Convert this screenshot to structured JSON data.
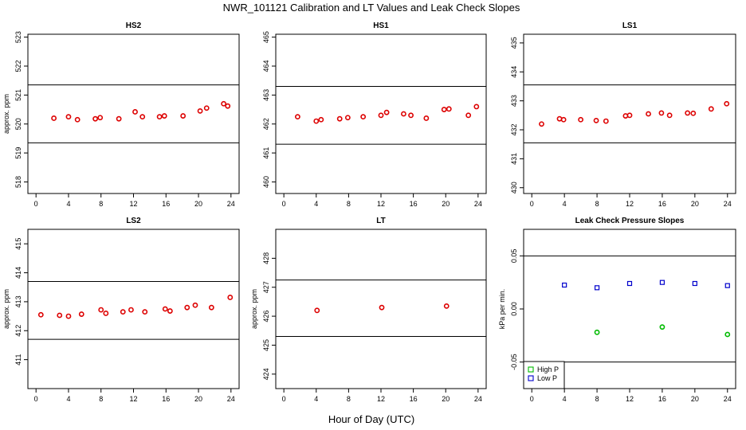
{
  "title": "NWR_101121  Calibration and LT Values and Leak Check Slopes",
  "xlabel": "Hour of Day (UTC)",
  "colors": {
    "red": "#dd0000",
    "green": "#00bb00",
    "blue": "#0000cc"
  },
  "chart_data": [
    {
      "type": "scatter",
      "title": "HS2",
      "ylabel": "approx. ppm",
      "xlim": [
        -1,
        25
      ],
      "xticks": [
        0,
        4,
        8,
        12,
        16,
        20,
        24
      ],
      "ylim": [
        517.6,
        523.1
      ],
      "yticks": [
        518,
        519,
        520,
        521,
        522,
        523
      ],
      "hlines": [
        519.35,
        521.35
      ],
      "series": [
        {
          "color": "red",
          "marker": "circle",
          "x": [
            2.2,
            4.0,
            5.1,
            7.3,
            7.9,
            10.2,
            12.2,
            13.1,
            15.2,
            15.8,
            18.1,
            20.2,
            21.0,
            23.1,
            23.6
          ],
          "y": [
            520.2,
            520.25,
            520.15,
            520.18,
            520.22,
            520.18,
            520.42,
            520.25,
            520.25,
            520.28,
            520.28,
            520.45,
            520.55,
            520.7,
            520.62
          ]
        }
      ]
    },
    {
      "type": "scatter",
      "title": "HS1",
      "ylabel": "",
      "xlim": [
        -1,
        25
      ],
      "xticks": [
        0,
        4,
        8,
        12,
        16,
        20,
        24
      ],
      "ylim": [
        459.6,
        465.1
      ],
      "yticks": [
        460,
        461,
        462,
        463,
        464,
        465
      ],
      "hlines": [
        461.3,
        463.3
      ],
      "series": [
        {
          "color": "red",
          "marker": "circle",
          "x": [
            1.7,
            4.0,
            4.6,
            6.9,
            7.9,
            9.8,
            12.0,
            12.7,
            14.8,
            15.7,
            17.6,
            19.8,
            20.4,
            22.8,
            23.8
          ],
          "y": [
            462.25,
            462.1,
            462.15,
            462.18,
            462.22,
            462.25,
            462.3,
            462.4,
            462.35,
            462.3,
            462.2,
            462.5,
            462.52,
            462.3,
            462.6
          ]
        }
      ]
    },
    {
      "type": "scatter",
      "title": "LS1",
      "ylabel": "",
      "xlim": [
        -1,
        25
      ],
      "xticks": [
        0,
        4,
        8,
        12,
        16,
        20,
        24
      ],
      "ylim": [
        429.8,
        435.3
      ],
      "yticks": [
        430,
        431,
        432,
        433,
        434,
        435
      ],
      "hlines": [
        431.55,
        433.55
      ],
      "series": [
        {
          "color": "red",
          "marker": "circle",
          "x": [
            1.2,
            3.4,
            3.9,
            6.0,
            7.9,
            9.1,
            11.5,
            12.0,
            14.3,
            15.9,
            16.9,
            19.1,
            19.8,
            22.0,
            23.9
          ],
          "y": [
            432.2,
            432.38,
            432.35,
            432.35,
            432.32,
            432.3,
            432.48,
            432.5,
            432.55,
            432.58,
            432.5,
            432.58,
            432.57,
            432.72,
            432.9
          ]
        }
      ]
    },
    {
      "type": "scatter",
      "title": "LS2",
      "ylabel": "approx. ppm",
      "xlim": [
        -1,
        25
      ],
      "xticks": [
        0,
        4,
        8,
        12,
        16,
        20,
        24
      ],
      "ylim": [
        410.0,
        415.5
      ],
      "yticks": [
        411,
        412,
        413,
        414,
        415
      ],
      "hlines": [
        411.7,
        413.7
      ],
      "series": [
        {
          "color": "red",
          "marker": "circle",
          "x": [
            0.6,
            2.9,
            4.0,
            5.6,
            8.0,
            8.6,
            10.7,
            11.7,
            13.4,
            15.9,
            16.5,
            18.6,
            19.6,
            21.6,
            23.9
          ],
          "y": [
            412.55,
            412.53,
            412.5,
            412.57,
            412.72,
            412.6,
            412.65,
            412.72,
            412.65,
            412.75,
            412.68,
            412.8,
            412.88,
            412.8,
            413.15
          ]
        }
      ]
    },
    {
      "type": "scatter",
      "title": "LT",
      "ylabel": "approx. ppm",
      "xlim": [
        -1,
        25
      ],
      "xticks": [
        0,
        4,
        8,
        12,
        16,
        20,
        24
      ],
      "ylim": [
        423.5,
        429.0
      ],
      "yticks": [
        424,
        425,
        426,
        427,
        428
      ],
      "hlines": [
        425.3,
        427.25
      ],
      "series": [
        {
          "color": "red",
          "marker": "circle",
          "x": [
            4.1,
            12.1,
            20.1
          ],
          "y": [
            426.2,
            426.3,
            426.35
          ]
        }
      ]
    },
    {
      "type": "scatter",
      "title": "Leak Check Pressure Slopes",
      "ylabel": "kPa per min.",
      "xlim": [
        -1,
        25
      ],
      "xticks": [
        0,
        4,
        8,
        12,
        16,
        20,
        24
      ],
      "ylim": [
        -0.075,
        0.075
      ],
      "yticks": [
        -0.05,
        0.0,
        0.05
      ],
      "ytick_labels": [
        "-0.05",
        "0.00",
        "0.05"
      ],
      "hlines": [
        -0.05,
        0.05
      ],
      "legend": {
        "position": "bottom-left",
        "entries": [
          "High P",
          "Low P"
        ]
      },
      "series": [
        {
          "name": "High P",
          "color": "green",
          "marker": "circle",
          "x": [
            8.0,
            16.0,
            24.0
          ],
          "y": [
            -0.022,
            -0.017,
            -0.024
          ]
        },
        {
          "name": "Low P",
          "color": "blue",
          "marker": "square",
          "x": [
            4.0,
            8.0,
            12.0,
            16.0,
            20.0,
            24.0
          ],
          "y": [
            0.0225,
            0.02,
            0.024,
            0.025,
            0.024,
            0.022
          ]
        }
      ]
    }
  ]
}
